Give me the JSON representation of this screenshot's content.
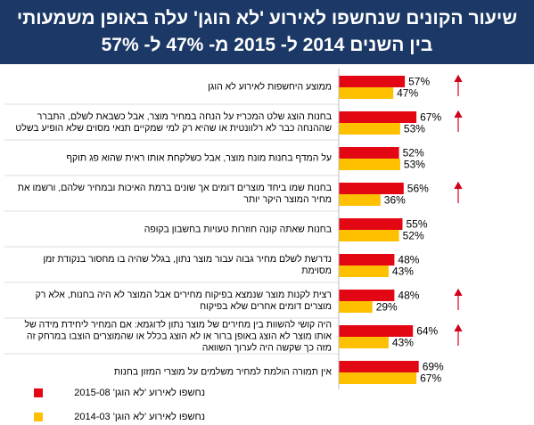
{
  "chart_data": {
    "type": "hbar",
    "title": "שיעור הקונים שנחשפו לאירוע 'לא הוגן' עלה באופן משמעותי בין השנים 2014 ל- 2015 מ- 47% ל- 57%",
    "categories": [
      "ממוצע היחשפות לאירוע לא הוגן",
      "בחנות הוצג שלט המכריז על הנחה במחיר מוצר, אבל כשבאת לשלם, התברר שההנחה כבר לא רלוונטית או שהיא רק למי שמקיים תנאי מסוים שלא הופיע בשלט",
      "על המדף בחנות מונח מוצר, אבל כשלקחת אותו ראית שהוא פג תוקף",
      "בחנות שמו ביחד מוצרים דומים אך שונים ברמת האיכות ובמחיר שלהם, ורשמו את מחיר המוצר היקר יותר",
      "בחנות שאתה קונה חוזרות טעויות בחשבון בקופה",
      "נדרשת לשלם מחיר גבוה עבור מוצר נתון, בגלל שהיה בו מחסור בנקודת זמן מסוימת",
      "רצית לקנות מוצר שנמצא בפיקוח מחירים אבל המוצר לא היה בחנות, אלא רק מוצרים דומים אחרים שלא בפיקוח",
      "היה קושי להשוות בין מחירים של מוצר נתון לדוגמא: אם המחיר ליחידת מידה של אותו מוצר לא הוצג באופן ברור או לא הוצג בכלל או שהמוצרים הוצבו במרחק זה מזה כך שקשה היה לערוך השוואה",
      "אין תמורה הולמת למחיר משלמים על מוצרי המזון בחנות"
    ],
    "series": [
      {
        "name": "נחשפו לאירוע 'לא הוגן' 2015-08",
        "color": "#e30613",
        "values": [
          57,
          67,
          52,
          56,
          55,
          48,
          48,
          64,
          69
        ],
        "value_labels": [
          "57%",
          "67%",
          "52%",
          "56%",
          "55%",
          "48%",
          "48%",
          "64%",
          "69%"
        ]
      },
      {
        "name": "נחשפו לאירוע 'לא הוגן' 2014-03",
        "color": "#ffc000",
        "values": [
          47,
          53,
          53,
          36,
          52,
          43,
          29,
          43,
          67
        ],
        "value_labels": [
          "47%",
          "53%",
          "53%",
          "36%",
          "52%",
          "43%",
          "29%",
          "43%",
          "67%"
        ]
      }
    ],
    "xlim": [
      0,
      100
    ]
  }
}
